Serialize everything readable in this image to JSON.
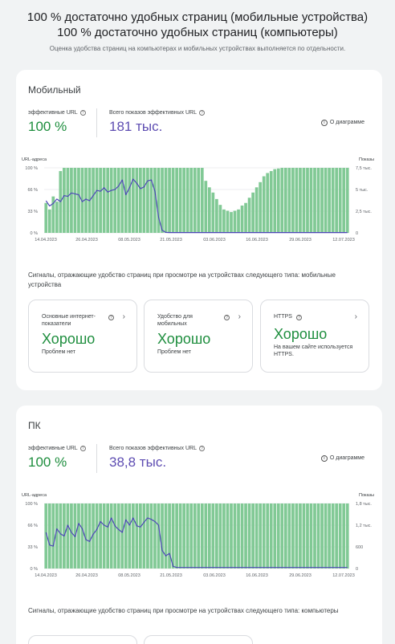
{
  "header": {
    "line1": "100 % достаточно удобных страниц (мобильные устройства)",
    "line2": "100 % достаточно удобных страниц (компьютеры)",
    "subtitle": "Оценка удобства страниц на компьютерах и мобильных устройствах выполняется по отдельности."
  },
  "sections": [
    {
      "title": "Мобильный",
      "metric1": {
        "label": "эффективные URL",
        "value": "100 %"
      },
      "metric2": {
        "label": "Всего показов эффективных URL",
        "value": "181 тыс."
      },
      "about": "О диаграмме",
      "signals": "Сигналы, отражающие удобство страниц при просмотре на устройствах следующего типа: мобильные устройства",
      "tiles": [
        {
          "title": "Основные интернет-показатели",
          "status": "Хорошо",
          "desc": "Проблем нет",
          "has_help": true
        },
        {
          "title": "Удобство для мобильных",
          "status": "Хорошо",
          "desc": "Проблем нет",
          "has_help": true
        },
        {
          "title": "HTTPS",
          "status": "Хорошо",
          "desc": "На вашем сайте используется HTTPS.",
          "has_help": true
        }
      ]
    },
    {
      "title": "ПК",
      "metric1": {
        "label": "эффективные URL",
        "value": "100 %"
      },
      "metric2": {
        "label": "Всего показов эффективных URL",
        "value": "38,8 тыс."
      },
      "about": "О диаграмме",
      "signals": "Сигналы, отражающие удобство страниц при просмотре на устройствах следующего типа: компьютеры"
    }
  ],
  "chart_data": [
    {
      "type": "bar",
      "left_axis_label": "URL-адреса",
      "right_axis_label": "Показы",
      "left_ticks": [
        "100 %",
        "66 %",
        "33 %",
        "0 %"
      ],
      "right_ticks": [
        "7,5 тыс.",
        "5 тыс.",
        "2,5 тыс.",
        "0"
      ],
      "x_ticks": [
        "14.04.2023",
        "26.04.2023",
        "08.05.2023",
        "21.05.2023",
        "03.06.2023",
        "16.06.2023",
        "29.06.2023",
        "12.07.2023"
      ],
      "ylim_left": [
        0,
        100
      ],
      "ylim_right": [
        0,
        7500
      ],
      "bar_color": "#81c995",
      "line_color": "#4e48b8",
      "bars_pct": [
        46,
        36,
        56,
        48,
        95,
        100,
        100,
        100,
        100,
        100,
        100,
        100,
        100,
        100,
        100,
        100,
        100,
        100,
        100,
        100,
        100,
        100,
        100,
        100,
        100,
        100,
        100,
        100,
        100,
        100,
        100,
        100,
        100,
        100,
        100,
        100,
        100,
        100,
        100,
        100,
        100,
        100,
        100,
        100,
        80,
        70,
        62,
        52,
        43,
        36,
        34,
        32,
        34,
        36,
        42,
        46,
        54,
        62,
        70,
        78,
        87,
        92,
        95,
        98,
        99,
        100,
        100,
        100,
        100,
        100,
        100,
        100,
        100,
        100,
        100,
        100,
        100,
        100,
        100,
        100,
        100,
        100,
        100,
        100
      ],
      "line_values": [
        3700,
        3100,
        3400,
        3900,
        3600,
        4300,
        4200,
        4600,
        4500,
        4400,
        3600,
        3900,
        3700,
        4300,
        4900,
        4800,
        5200,
        4700,
        4900,
        5000,
        5400,
        6100,
        4400,
        5200,
        6200,
        5700,
        5100,
        5300,
        6000,
        6100,
        4800,
        1800,
        300,
        60,
        40,
        40,
        40,
        40,
        40,
        40,
        40,
        40,
        40,
        40,
        40,
        40,
        40,
        40,
        40,
        40,
        40,
        40,
        40,
        40,
        40,
        40,
        40,
        40,
        40,
        40,
        40,
        40,
        40,
        40,
        40,
        40,
        40,
        40,
        40,
        40,
        40,
        40,
        40,
        40,
        40,
        40,
        40,
        40,
        40,
        40,
        40,
        40,
        40,
        40
      ]
    },
    {
      "type": "bar",
      "left_axis_label": "URL-адреса",
      "right_axis_label": "Показы",
      "left_ticks": [
        "100 %",
        "66 %",
        "33 %",
        "0 %"
      ],
      "right_ticks": [
        "1,8 тыс.",
        "1,2 тыс.",
        "600",
        "0"
      ],
      "x_ticks": [
        "14.04.2023",
        "26.04.2023",
        "08.05.2023",
        "21.05.2023",
        "03.06.2023",
        "16.06.2023",
        "29.06.2023",
        "12.07.2023"
      ],
      "ylim_left": [
        0,
        100
      ],
      "ylim_right": [
        0,
        1800
      ],
      "bar_color": "#81c995",
      "line_color": "#4e48b8",
      "bars_pct": [
        100,
        100,
        100,
        100,
        100,
        100,
        100,
        100,
        100,
        100,
        100,
        100,
        100,
        100,
        100,
        100,
        100,
        100,
        100,
        100,
        100,
        100,
        100,
        100,
        100,
        100,
        100,
        100,
        100,
        100,
        100,
        100,
        100,
        100,
        100,
        100,
        100,
        100,
        100,
        100,
        100,
        100,
        100,
        100,
        100,
        100,
        100,
        100,
        100,
        100,
        100,
        100,
        100,
        100,
        100,
        100,
        100,
        100,
        100,
        100,
        100,
        100,
        100,
        100,
        100,
        100,
        100,
        100,
        100,
        100,
        100,
        100,
        100,
        100,
        100,
        100,
        100,
        100,
        100,
        100,
        100,
        100,
        100,
        100
      ],
      "line_values": [
        1000,
        650,
        620,
        1100,
        960,
        900,
        1200,
        1000,
        880,
        1250,
        1100,
        800,
        750,
        950,
        1080,
        1300,
        1200,
        1150,
        1400,
        1180,
        1080,
        1000,
        1350,
        1200,
        1400,
        1180,
        1150,
        1280,
        1400,
        1360,
        1300,
        1200,
        500,
        350,
        420,
        60,
        30,
        30,
        30,
        30,
        30,
        30,
        30,
        30,
        30,
        30,
        30,
        30,
        30,
        30,
        30,
        30,
        30,
        30,
        30,
        30,
        30,
        30,
        30,
        30,
        30,
        30,
        30,
        30,
        30,
        30,
        30,
        30,
        30,
        30,
        30,
        30,
        30,
        30,
        30,
        30,
        30,
        30,
        30,
        30,
        30,
        30,
        30,
        30
      ]
    }
  ]
}
